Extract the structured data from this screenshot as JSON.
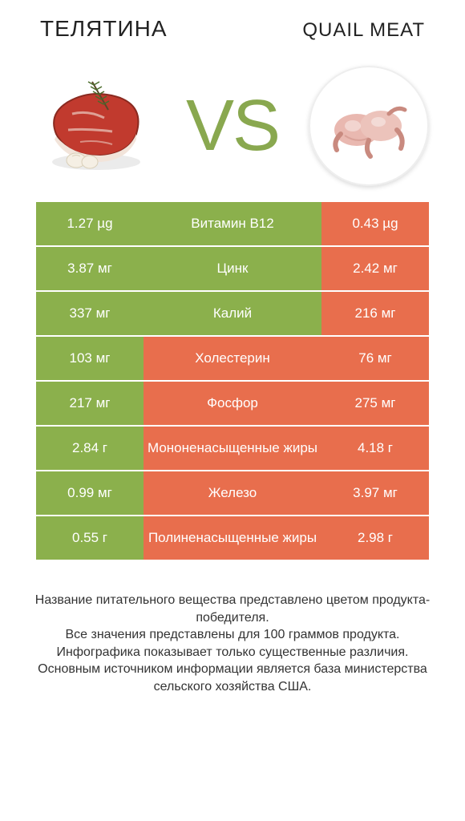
{
  "header": {
    "left_title": "ТЕЛЯТИНА",
    "right_title": "QUAIL MEAT"
  },
  "hero": {
    "vs_label": "VS"
  },
  "colors": {
    "green": "#8bb04c",
    "orange": "#e86e4d",
    "vs_color": "#89a84f",
    "beef_red": "#c13a2e",
    "beef_fat": "#f2e4da",
    "quail_pink": "#e9b8b0",
    "quail_dark": "#c98a7f",
    "rosemary_green": "#4a6b2a"
  },
  "comparison": {
    "type": "infographic-table",
    "left_color": "#8bb04c",
    "right_color": "#e86e4d",
    "rows": [
      {
        "left": "1.27 µg",
        "mid": "Витамин B12",
        "right": "0.43 µg",
        "winner": "left"
      },
      {
        "left": "3.87 мг",
        "mid": "Цинк",
        "right": "2.42 мг",
        "winner": "left"
      },
      {
        "left": "337 мг",
        "mid": "Калий",
        "right": "216 мг",
        "winner": "left"
      },
      {
        "left": "103 мг",
        "mid": "Холестерин",
        "right": "76 мг",
        "winner": "right"
      },
      {
        "left": "217 мг",
        "mid": "Фосфор",
        "right": "275 мг",
        "winner": "right"
      },
      {
        "left": "2.84 г",
        "mid": "Мононенасыщенные жиры",
        "right": "4.18 г",
        "winner": "right"
      },
      {
        "left": "0.99 мг",
        "mid": "Железо",
        "right": "3.97 мг",
        "winner": "right"
      },
      {
        "left": "0.55 г",
        "mid": "Полиненасыщенные жиры",
        "right": "2.98 г",
        "winner": "right"
      }
    ]
  },
  "footer": {
    "line1": "Название питательного вещества представлено цветом продукта-победителя.",
    "line2": "Все значения представлены для 100 граммов продукта.",
    "line3": "Инфографика показывает только существенные различия.",
    "line4": "Основным источником информации является база министерства сельского хозяйства США."
  }
}
